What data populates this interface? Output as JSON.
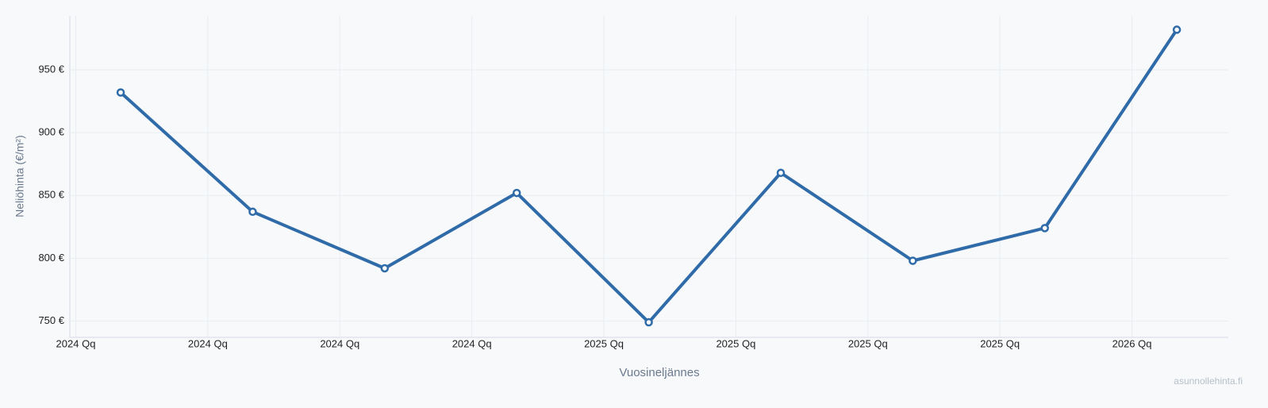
{
  "chart_data": {
    "type": "line",
    "y_label": "Neliöhinta (€/m²)",
    "x_label": "Vuosineljännes",
    "watermark": "asunnollehinta.fi",
    "x": [
      0,
      1,
      2,
      3,
      4,
      5,
      6,
      7,
      8
    ],
    "values": [
      932,
      837,
      792,
      852,
      749,
      868,
      798,
      824,
      982
    ],
    "color": "#2f6ba8",
    "xlim": [
      -0.385,
      8.39
    ],
    "xticks": [
      {
        "value": -0.34,
        "label": "2024 Qq"
      },
      {
        "value": 0.66,
        "label": "2024 Qq"
      },
      {
        "value": 1.66,
        "label": "2024 Qq"
      },
      {
        "value": 2.66,
        "label": "2024 Qq"
      },
      {
        "value": 3.66,
        "label": "2025 Qq"
      },
      {
        "value": 4.66,
        "label": "2025 Qq"
      },
      {
        "value": 5.66,
        "label": "2025 Qq"
      },
      {
        "value": 6.66,
        "label": "2025 Qq"
      },
      {
        "value": 7.66,
        "label": "2026 Qq"
      }
    ],
    "ylim": [
      737,
      993
    ],
    "yticks": [
      {
        "value": 750,
        "label": "750 €"
      },
      {
        "value": 800,
        "label": "800 €"
      },
      {
        "value": 850,
        "label": "850 €"
      },
      {
        "value": 900,
        "label": "900 €"
      },
      {
        "value": 950,
        "label": "950 €"
      }
    ],
    "grid": true
  }
}
